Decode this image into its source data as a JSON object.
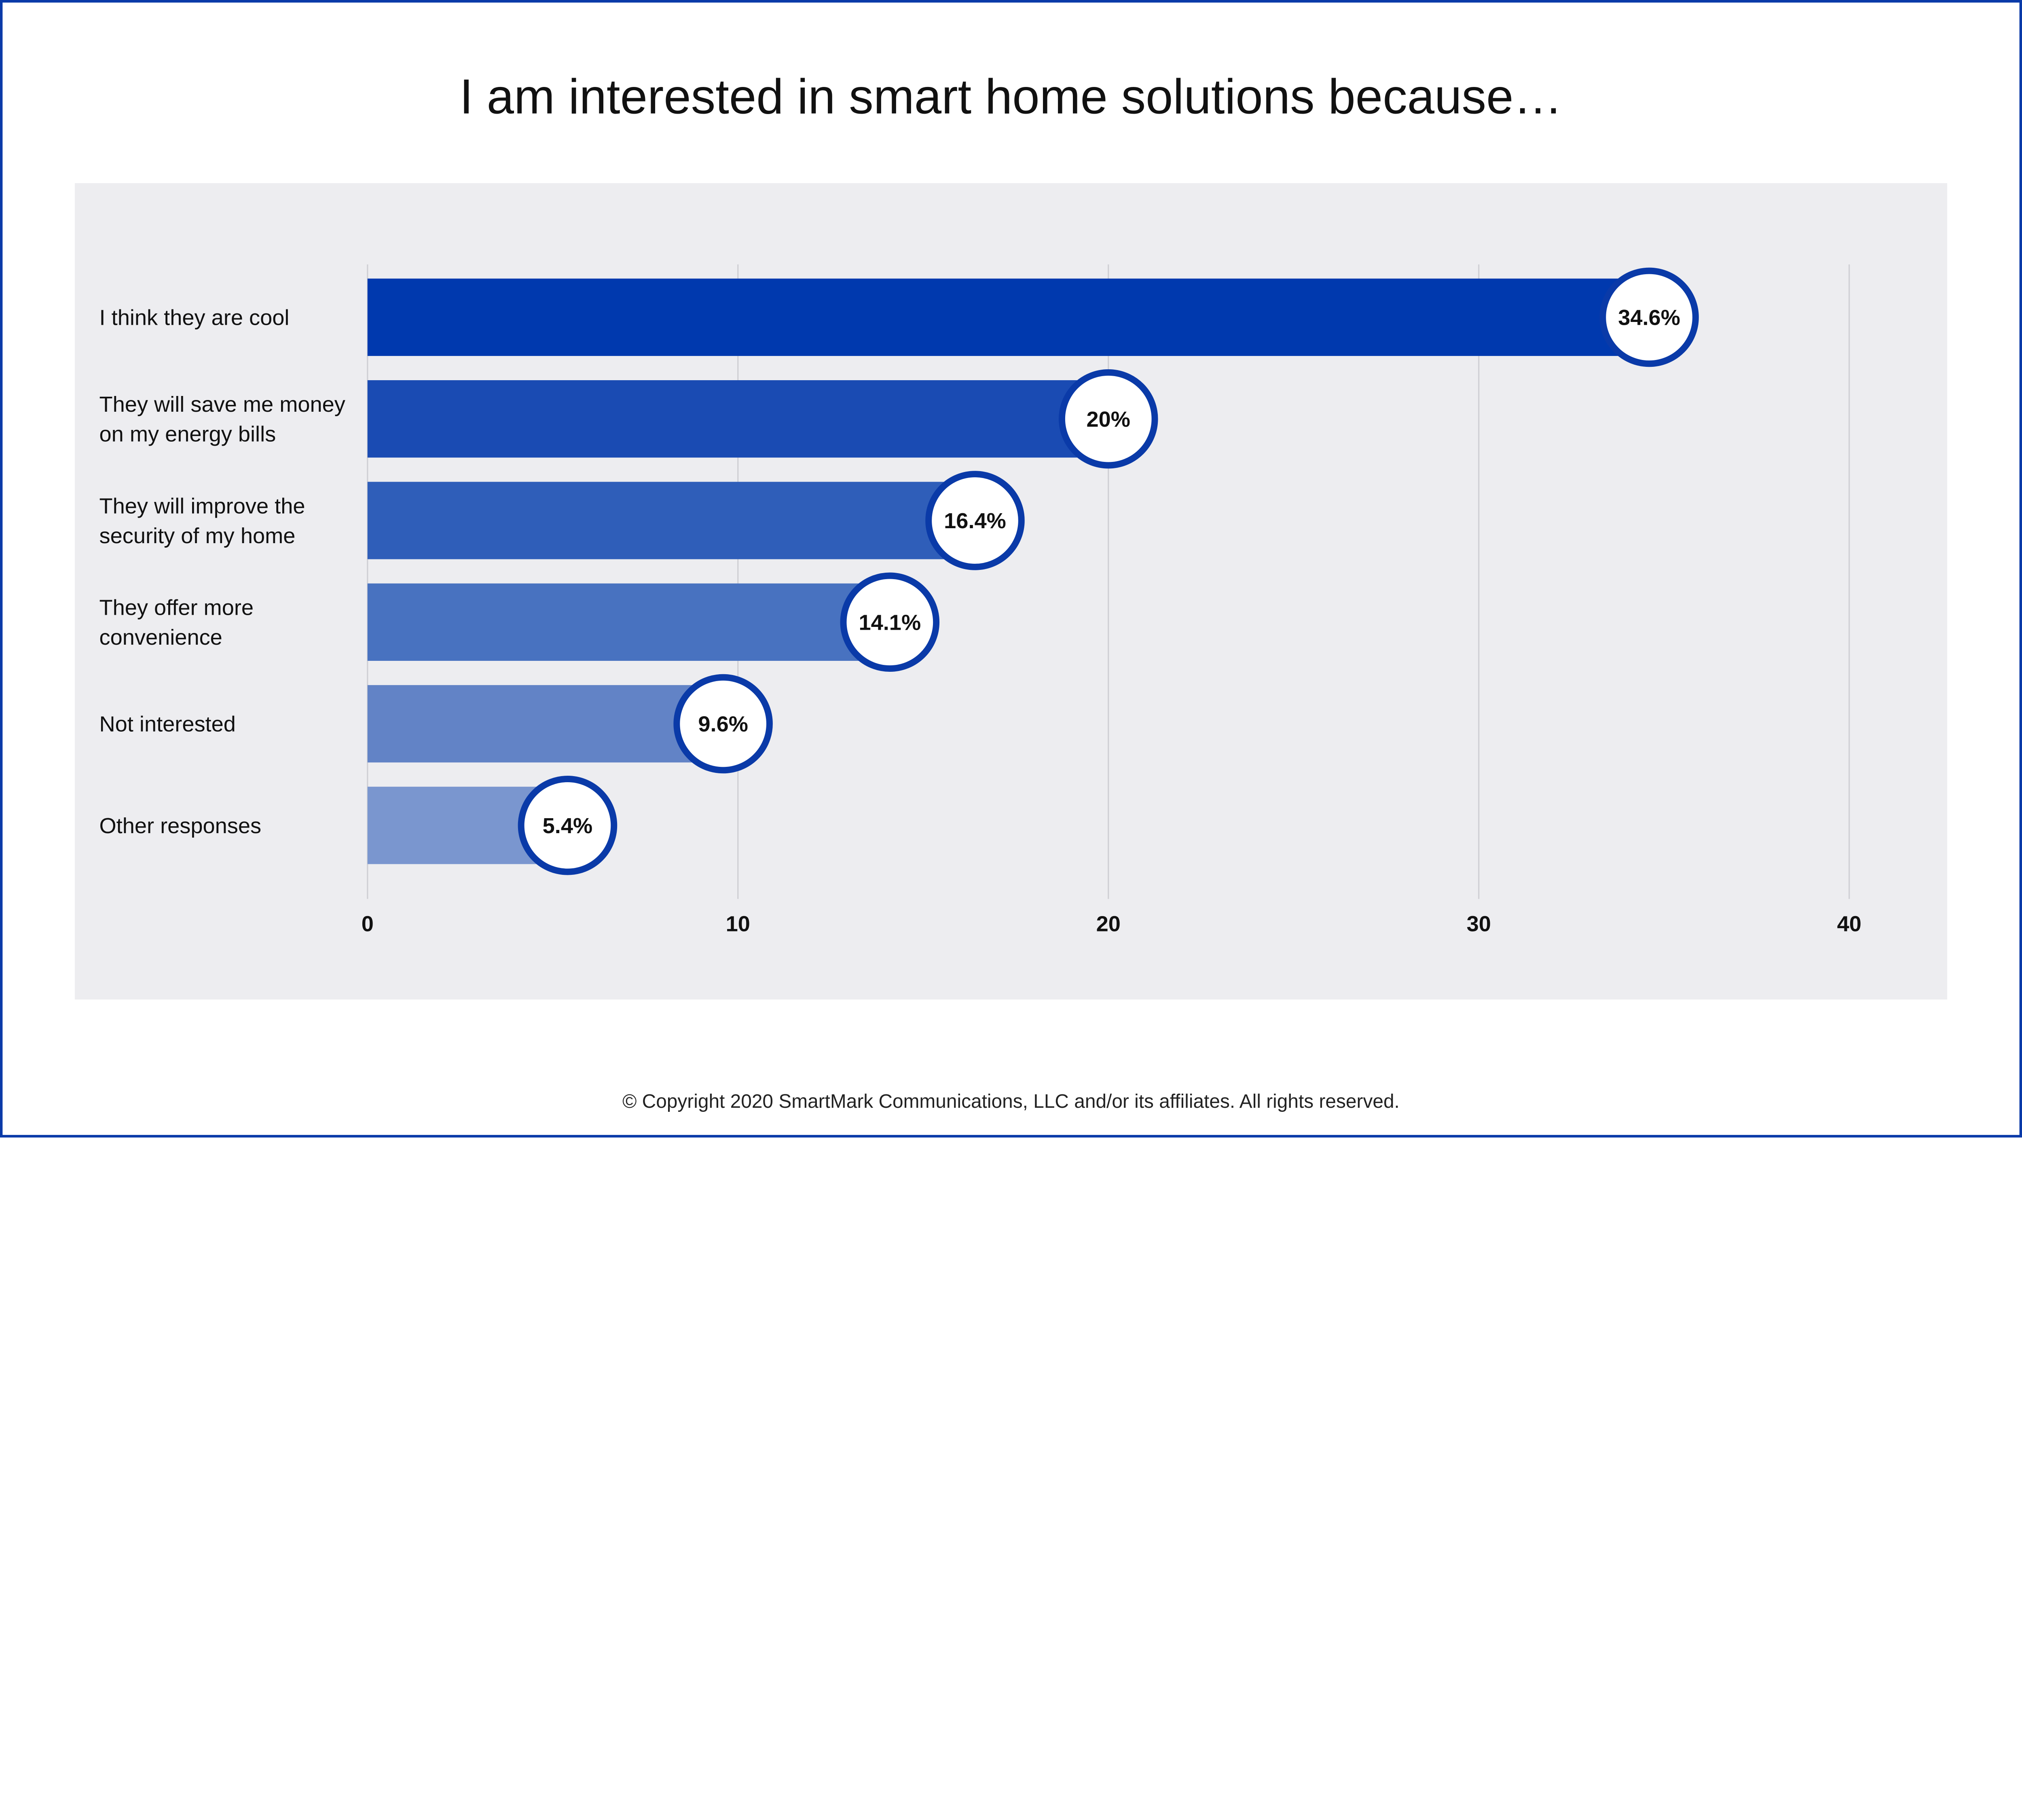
{
  "chart_data": {
    "type": "bar",
    "orientation": "horizontal",
    "title": "I am interested in smart home solutions because…",
    "categories": [
      [
        "I think they are cool"
      ],
      [
        "They will save me money",
        "on my energy bills"
      ],
      [
        "They will improve the",
        "security of my home"
      ],
      [
        "They offer more",
        "convenience"
      ],
      [
        "Not interested"
      ],
      [
        "Other responses"
      ]
    ],
    "values": [
      34.6,
      20,
      16.4,
      14.1,
      9.6,
      5.4
    ],
    "data_labels": [
      "34.6%",
      "20%",
      "16.4%",
      "14.1%",
      "9.6%",
      "5.4%"
    ],
    "xlim": [
      0,
      40
    ],
    "xticks": [
      0,
      10,
      20,
      30,
      40
    ],
    "grid": true,
    "bar_colors": [
      "#0039ae",
      "#1a4bb3",
      "#2f5eb9",
      "#4872c0",
      "#6283c6",
      "#7a96cf"
    ],
    "label_circle_stroke": "#0a3aa8",
    "panel_color": "#ededf0"
  },
  "footer": "© Copyright 2020 SmartMark Communications, LLC and/or its affiliates. All rights reserved.",
  "frame_color": "#0a3aa8"
}
